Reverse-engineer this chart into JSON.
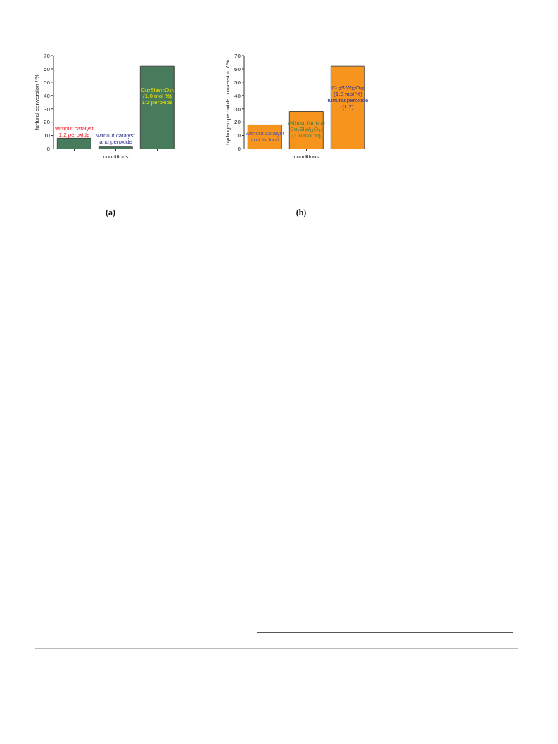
{
  "chart_data": [
    {
      "type": "bar",
      "title": "(a)",
      "xlabel": "conditions",
      "ylabel": "furfural conversion / %",
      "categories": [
        null,
        null,
        null
      ],
      "values": [
        8,
        1.5,
        62
      ],
      "color": "#487a5c",
      "ylim": [
        0,
        70
      ],
      "yticks": [
        0,
        10,
        20,
        30,
        40,
        50,
        60,
        70
      ],
      "annotations": [
        "without catalyst\n1:2 peroxide",
        "without catalyst\nand peroxide",
        "Cu₂SiW₁₂O₄₀\n(1.0 mol %)\n1:2 peroxide"
      ]
    },
    {
      "type": "bar",
      "title": "(b)",
      "xlabel": "conditions",
      "ylabel": "hydrogen peroxide conversion / %",
      "categories": [
        null,
        null,
        null
      ],
      "values": [
        18,
        28,
        62
      ],
      "color": "#f7941e",
      "ylim": [
        0,
        70
      ],
      "yticks": [
        0,
        10,
        20,
        30,
        40,
        50,
        60,
        70
      ],
      "annotations": [
        "without catalyst\nand furfural",
        "without furfural\nCu₂SiW₁₂O₄₀\n(1.0 mol %)",
        "Cu₂SiW₁₂O₄₀\n(1.0 mol %)\nfurfural:peroxide\n(1:2)"
      ]
    }
  ]
}
